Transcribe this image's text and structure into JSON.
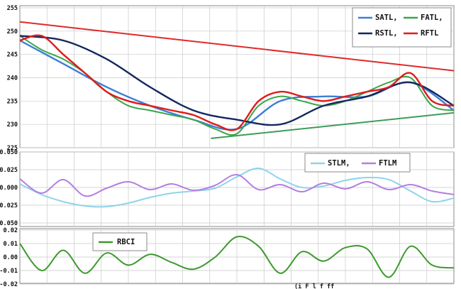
{
  "chart_data": [
    {
      "type": "line",
      "ylim": [
        225,
        255
      ],
      "yticks": [
        225,
        230,
        235,
        240,
        245,
        250,
        255
      ],
      "grid": true,
      "legend_position": "top-right",
      "series": [
        {
          "name": "SATL,",
          "color": "#3a7fd5",
          "x": [
            0,
            10,
            20,
            30,
            40,
            50,
            60,
            70,
            80,
            90,
            100
          ],
          "y": [
            248,
            243,
            238,
            234,
            231,
            229,
            235,
            236,
            236,
            239,
            233
          ]
        },
        {
          "name": "FATL,",
          "color": "#3aa64a",
          "x": [
            0,
            5,
            10,
            15,
            20,
            25,
            30,
            35,
            40,
            45,
            50,
            55,
            60,
            65,
            70,
            75,
            80,
            85,
            90,
            95,
            100
          ],
          "y": [
            249,
            246,
            244,
            241,
            237,
            234,
            233,
            232,
            231,
            229,
            228,
            234,
            236,
            235,
            234,
            235,
            237,
            239,
            240,
            234,
            233
          ]
        },
        {
          "name": "RSTL,",
          "color": "#14285e",
          "x": [
            0,
            10,
            20,
            30,
            40,
            50,
            60,
            70,
            80,
            90,
            100
          ],
          "y": [
            249,
            248,
            244,
            238,
            233,
            231,
            230,
            234,
            236,
            239,
            234
          ]
        },
        {
          "name": "RFTL",
          "color": "#e01b1b",
          "x": [
            0,
            5,
            10,
            15,
            20,
            25,
            30,
            35,
            40,
            45,
            50,
            55,
            60,
            65,
            70,
            75,
            80,
            85,
            90,
            95,
            100
          ],
          "y": [
            248,
            249,
            245,
            241,
            237,
            235,
            234,
            233,
            232,
            230,
            229,
            235,
            237,
            236,
            235,
            236,
            237,
            238,
            241,
            235,
            234
          ]
        },
        {
          "name": "",
          "color": "#e02a2a",
          "x": [
            0,
            100
          ],
          "y": [
            252,
            241.5
          ]
        },
        {
          "name": "",
          "color": "#3c9c5a",
          "x": [
            44,
            100
          ],
          "y": [
            227,
            232.5
          ]
        }
      ]
    },
    {
      "type": "line",
      "yticks": [
        "0.050",
        "0.025",
        "0.000",
        "-0.025",
        "-0.050"
      ],
      "grid": true,
      "legend_position": "top-right",
      "series": [
        {
          "name": "STLM,",
          "color": "#8fd3ea",
          "x": [
            0,
            5,
            10,
            15,
            20,
            25,
            30,
            35,
            40,
            45,
            50,
            55,
            60,
            65,
            70,
            75,
            80,
            85,
            90,
            95,
            100
          ],
          "y": [
            0.005,
            -0.01,
            -0.02,
            -0.026,
            -0.027,
            -0.022,
            -0.014,
            -0.008,
            -0.005,
            -0.001,
            0.015,
            0.027,
            0.012,
            0.0,
            0.002,
            0.01,
            0.014,
            0.011,
            -0.005,
            -0.02,
            -0.015
          ]
        },
        {
          "name": "FTLM",
          "color": "#b47fe0",
          "x": [
            0,
            5,
            10,
            15,
            20,
            25,
            30,
            35,
            40,
            45,
            50,
            55,
            60,
            65,
            70,
            75,
            80,
            85,
            90,
            95,
            100
          ],
          "y": [
            0.012,
            -0.008,
            0.011,
            -0.012,
            -0.001,
            0.008,
            -0.003,
            0.005,
            -0.004,
            0.003,
            0.018,
            -0.003,
            0.004,
            -0.006,
            0.006,
            -0.002,
            0.008,
            -0.003,
            0.004,
            -0.005,
            -0.01
          ]
        }
      ]
    },
    {
      "type": "line",
      "yticks": [
        "0.02",
        "0.01",
        "0.00",
        "-0.01",
        "-0.02"
      ],
      "grid": true,
      "legend_position": "top-left",
      "series": [
        {
          "name": "RBCI",
          "color": "#3c9a2c",
          "x": [
            0,
            5,
            10,
            15,
            20,
            25,
            30,
            35,
            40,
            45,
            50,
            55,
            60,
            65,
            70,
            75,
            80,
            85,
            90,
            95,
            100
          ],
          "y": [
            0.01,
            -0.01,
            0.005,
            -0.012,
            0.003,
            -0.006,
            0.002,
            -0.004,
            -0.009,
            0.0,
            0.015,
            0.008,
            -0.012,
            0.004,
            -0.003,
            0.007,
            0.006,
            -0.015,
            0.008,
            -0.006,
            -0.008
          ]
        }
      ]
    }
  ],
  "footer_text": "(i                F            l                     f        ff"
}
